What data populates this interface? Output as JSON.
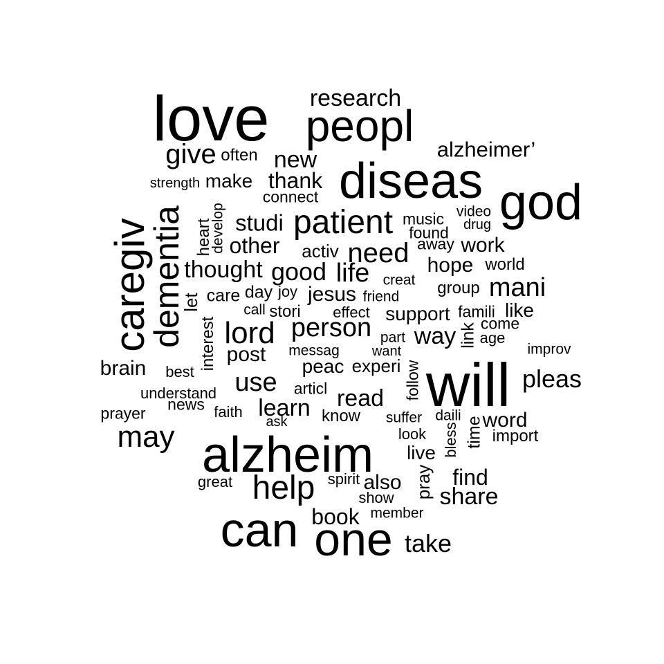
{
  "text_color": "#000000",
  "background_color": "#ffffff",
  "words": [
    {
      "id": "love",
      "text": "love"
    },
    {
      "id": "research",
      "text": "research"
    },
    {
      "id": "peopl",
      "text": "peopl"
    },
    {
      "id": "alzheimer",
      "text": "alzheimer’"
    },
    {
      "id": "give",
      "text": "give"
    },
    {
      "id": "often",
      "text": "often"
    },
    {
      "id": "new",
      "text": "new"
    },
    {
      "id": "diseas",
      "text": "diseas"
    },
    {
      "id": "god",
      "text": "god"
    },
    {
      "id": "strength",
      "text": "strength"
    },
    {
      "id": "make",
      "text": "make"
    },
    {
      "id": "thank",
      "text": "thank"
    },
    {
      "id": "connect",
      "text": "connect"
    },
    {
      "id": "video",
      "text": "video"
    },
    {
      "id": "drug",
      "text": "drug"
    },
    {
      "id": "music",
      "text": "music"
    },
    {
      "id": "found",
      "text": "found"
    },
    {
      "id": "studi",
      "text": "studi"
    },
    {
      "id": "patient",
      "text": "patient"
    },
    {
      "id": "caregiv",
      "text": "caregiv"
    },
    {
      "id": "dementia",
      "text": "dementia"
    },
    {
      "id": "develop",
      "text": "develop"
    },
    {
      "id": "heart",
      "text": "heart"
    },
    {
      "id": "other",
      "text": "other"
    },
    {
      "id": "activ",
      "text": "activ"
    },
    {
      "id": "need",
      "text": "need"
    },
    {
      "id": "away",
      "text": "away"
    },
    {
      "id": "work",
      "text": "work"
    },
    {
      "id": "thought",
      "text": "thought"
    },
    {
      "id": "good",
      "text": "good"
    },
    {
      "id": "life",
      "text": "life"
    },
    {
      "id": "hope",
      "text": "hope"
    },
    {
      "id": "world",
      "text": "world"
    },
    {
      "id": "creat",
      "text": "creat"
    },
    {
      "id": "group",
      "text": "group"
    },
    {
      "id": "mani",
      "text": "mani"
    },
    {
      "id": "let",
      "text": "let"
    },
    {
      "id": "care",
      "text": "care"
    },
    {
      "id": "day",
      "text": "day"
    },
    {
      "id": "joy",
      "text": "joy"
    },
    {
      "id": "jesus",
      "text": "jesus"
    },
    {
      "id": "friend",
      "text": "friend"
    },
    {
      "id": "call",
      "text": "call"
    },
    {
      "id": "stori",
      "text": "stori"
    },
    {
      "id": "effect",
      "text": "effect"
    },
    {
      "id": "support",
      "text": "support"
    },
    {
      "id": "famili",
      "text": "famili"
    },
    {
      "id": "like",
      "text": "like"
    },
    {
      "id": "interest",
      "text": "interest"
    },
    {
      "id": "lord",
      "text": "lord"
    },
    {
      "id": "person",
      "text": "person"
    },
    {
      "id": "part",
      "text": "part"
    },
    {
      "id": "way",
      "text": "way"
    },
    {
      "id": "link",
      "text": "link"
    },
    {
      "id": "come",
      "text": "come"
    },
    {
      "id": "age",
      "text": "age"
    },
    {
      "id": "post",
      "text": "post"
    },
    {
      "id": "messag",
      "text": "messag"
    },
    {
      "id": "want",
      "text": "want"
    },
    {
      "id": "improv",
      "text": "improv"
    },
    {
      "id": "brain",
      "text": "brain"
    },
    {
      "id": "best",
      "text": "best"
    },
    {
      "id": "peac",
      "text": "peac"
    },
    {
      "id": "experi",
      "text": "experi"
    },
    {
      "id": "follow",
      "text": "follow"
    },
    {
      "id": "will",
      "text": "will"
    },
    {
      "id": "pleas",
      "text": "pleas"
    },
    {
      "id": "use",
      "text": "use"
    },
    {
      "id": "articl",
      "text": "articl"
    },
    {
      "id": "understand",
      "text": "understand"
    },
    {
      "id": "read",
      "text": "read"
    },
    {
      "id": "news",
      "text": "news"
    },
    {
      "id": "faith",
      "text": "faith"
    },
    {
      "id": "learn",
      "text": "learn"
    },
    {
      "id": "prayer",
      "text": "prayer"
    },
    {
      "id": "know",
      "text": "know"
    },
    {
      "id": "suffer",
      "text": "suffer"
    },
    {
      "id": "daili",
      "text": "daili"
    },
    {
      "id": "word",
      "text": "word"
    },
    {
      "id": "ask",
      "text": "ask"
    },
    {
      "id": "time",
      "text": "time"
    },
    {
      "id": "may",
      "text": "may"
    },
    {
      "id": "look",
      "text": "look"
    },
    {
      "id": "bless",
      "text": "bless"
    },
    {
      "id": "import",
      "text": "import"
    },
    {
      "id": "alzheim",
      "text": "alzheim"
    },
    {
      "id": "live",
      "text": "live"
    },
    {
      "id": "pray",
      "text": "pray"
    },
    {
      "id": "find",
      "text": "find"
    },
    {
      "id": "great",
      "text": "great"
    },
    {
      "id": "spirit",
      "text": "spirit"
    },
    {
      "id": "help",
      "text": "help"
    },
    {
      "id": "also",
      "text": "also"
    },
    {
      "id": "share",
      "text": "share"
    },
    {
      "id": "show",
      "text": "show"
    },
    {
      "id": "book",
      "text": "book"
    },
    {
      "id": "member",
      "text": "member"
    },
    {
      "id": "can",
      "text": "can"
    },
    {
      "id": "one",
      "text": "one"
    },
    {
      "id": "take",
      "text": "take"
    }
  ]
}
